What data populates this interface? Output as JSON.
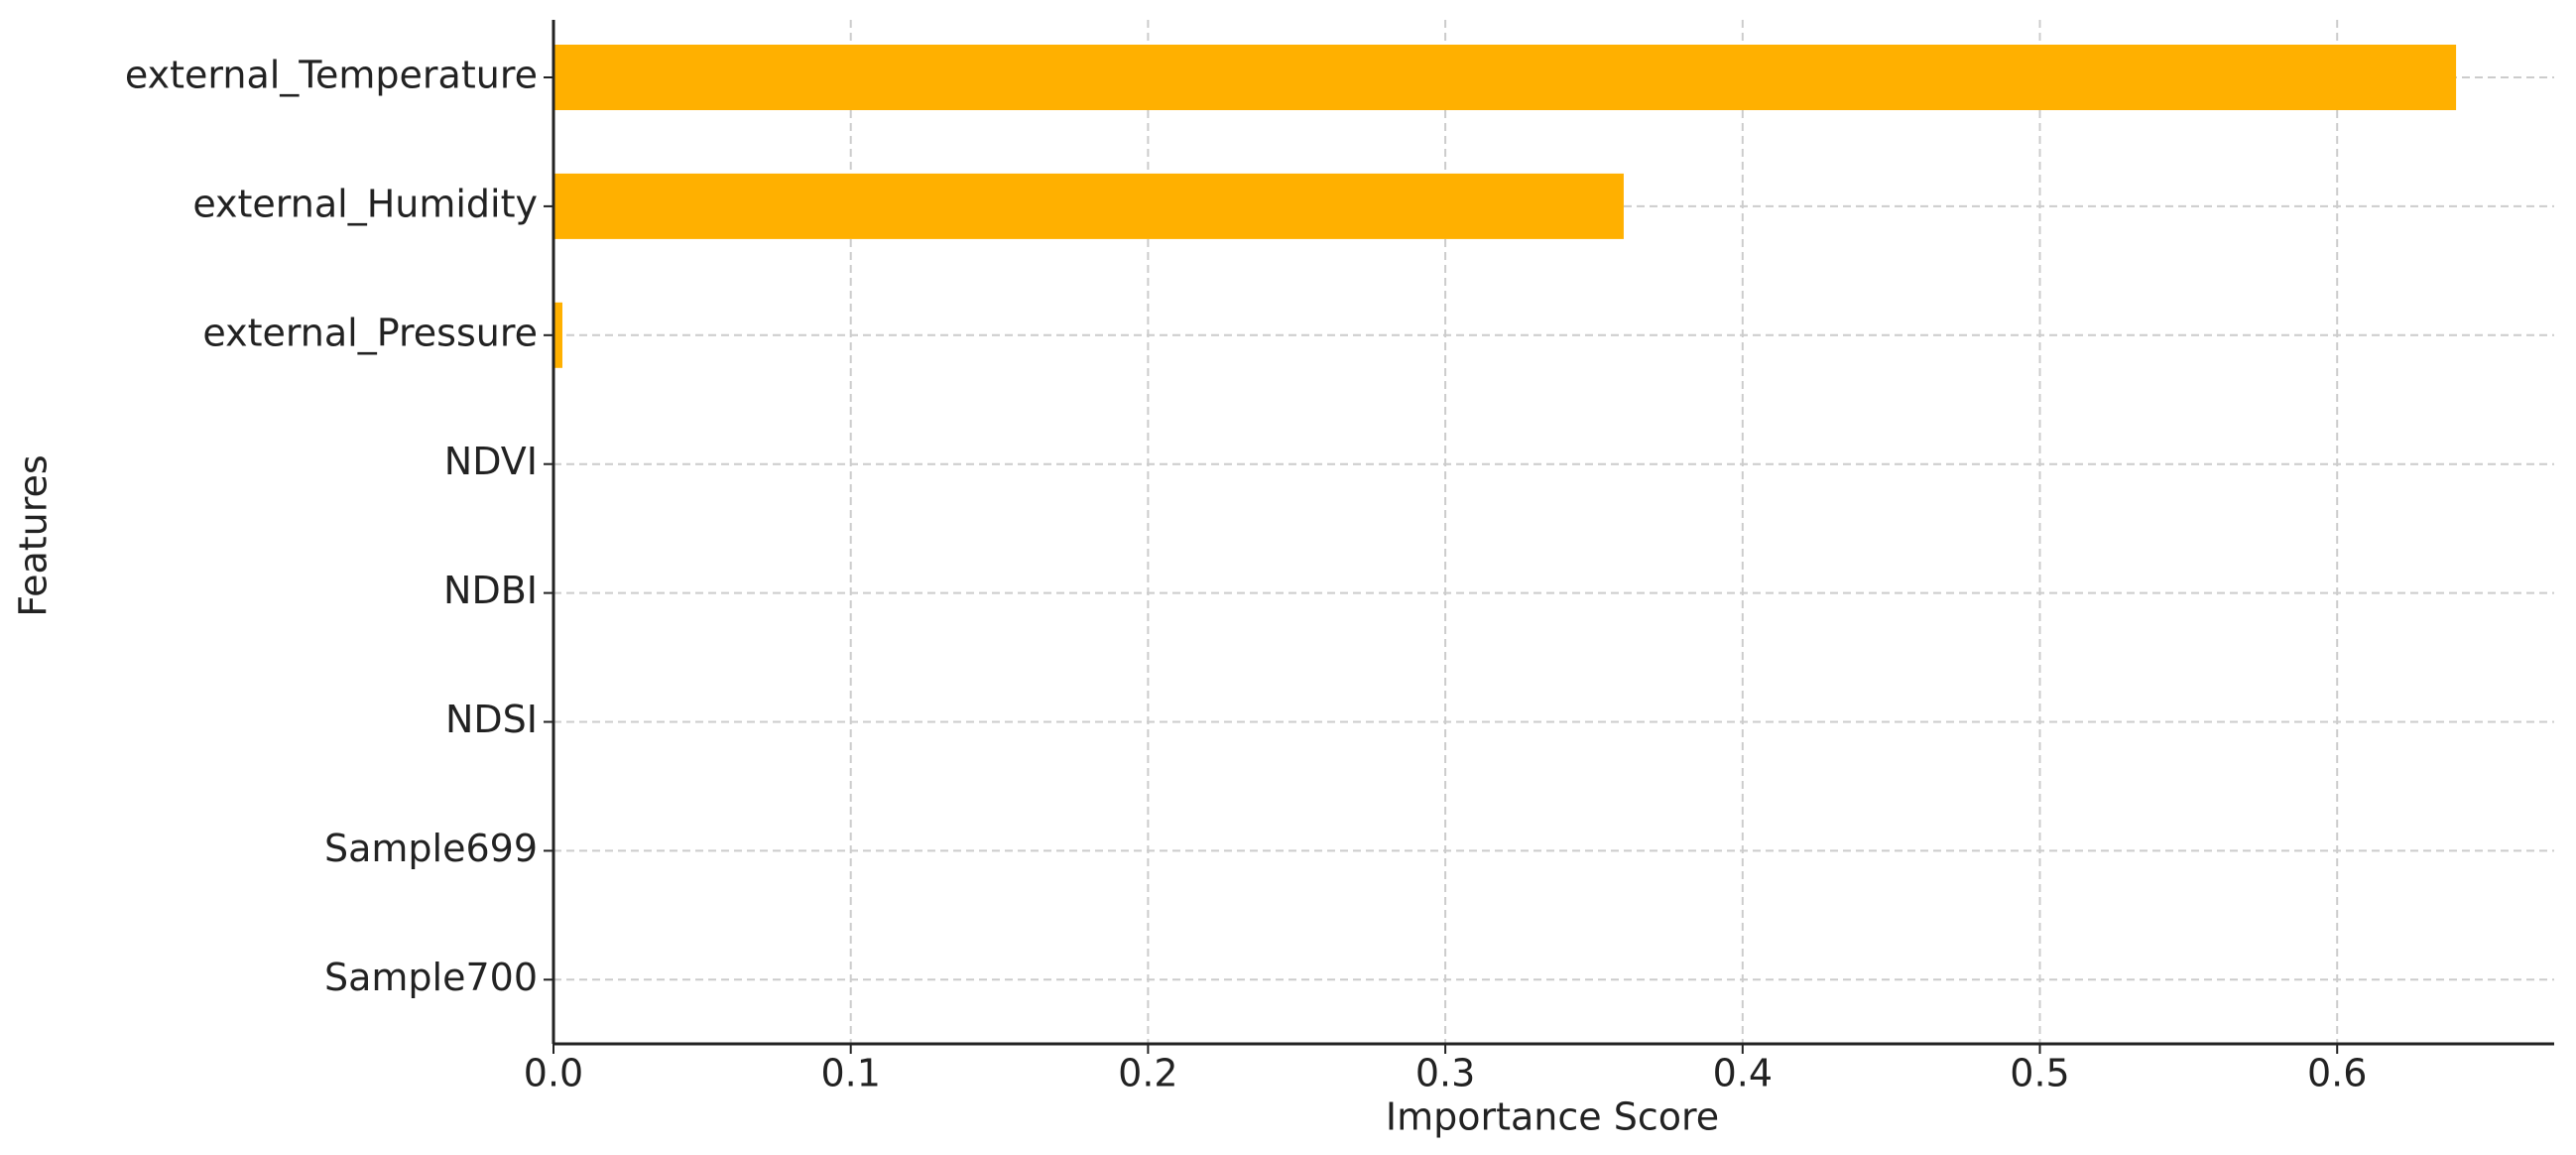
{
  "chart_data": {
    "type": "barh",
    "xlabel": "Importance Score",
    "ylabel": "Features",
    "categories": [
      "external_Temperature",
      "external_Humidity",
      "external_Pressure",
      "NDVI",
      "NDBI",
      "NDSI",
      "Sample699",
      "Sample700"
    ],
    "values": [
      0.64,
      0.36,
      0.003,
      0,
      0,
      0,
      0,
      0
    ],
    "color": "#ffb000",
    "xlim": [
      0,
      0.673
    ],
    "xticks": [
      {
        "value": 0,
        "label": "0.0"
      },
      0.1,
      0.2,
      0.3,
      0.4,
      0.5,
      0.6
    ],
    "grid": true
  }
}
